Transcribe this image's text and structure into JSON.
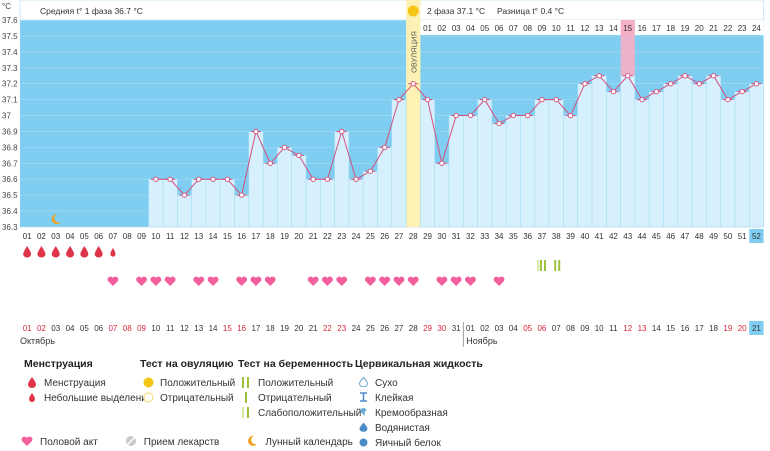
{
  "chart_data": {
    "type": "line",
    "y_unit": "°C",
    "ylim": [
      36.3,
      37.6
    ],
    "y_ticks": [
      "37.6",
      "37.5",
      "37.4",
      "37.3",
      "37.2",
      "37.1",
      "37",
      "36.9",
      "36.8",
      "36.7",
      "36.6",
      "36.5",
      "36.4",
      "36.3"
    ],
    "cycle_days": [
      "01",
      "02",
      "03",
      "04",
      "05",
      "06",
      "07",
      "08",
      "09",
      "10",
      "11",
      "12",
      "13",
      "14",
      "15",
      "16",
      "17",
      "18",
      "19",
      "20",
      "21",
      "22",
      "23",
      "24",
      "25",
      "26",
      "27",
      "28",
      "29",
      "30",
      "31",
      "32",
      "33",
      "34",
      "35",
      "36",
      "37",
      "38",
      "39",
      "40",
      "41",
      "42",
      "43",
      "44",
      "45",
      "46",
      "47",
      "48",
      "49",
      "50",
      "51",
      "52"
    ],
    "temperatures": [
      null,
      null,
      null,
      null,
      null,
      null,
      null,
      null,
      null,
      36.6,
      36.6,
      36.5,
      36.6,
      36.6,
      36.6,
      36.5,
      36.9,
      36.7,
      36.8,
      36.75,
      36.6,
      36.6,
      36.9,
      36.6,
      36.65,
      36.8,
      37.1,
      37.2,
      37.1,
      36.7,
      37.0,
      37.0,
      37.1,
      36.95,
      37.0,
      37.0,
      37.1,
      37.1,
      37.0,
      37.2,
      37.25,
      37.15,
      37.25,
      37.1,
      37.15,
      37.2,
      37.25,
      37.2,
      37.25,
      37.1,
      37.15,
      37.2
    ],
    "ovulation_day": "28",
    "ovulation_label": "ОВУЛЯЦИЯ",
    "phase1_label": "Средняя t° 1 фаза 36.7 °C",
    "phase2_label": "2 фаза 37.1 °C",
    "difference_label": "Разница t° 0.4 °C",
    "post_ovulation_days": [
      "01",
      "02",
      "03",
      "04",
      "05",
      "06",
      "07",
      "08",
      "09",
      "10",
      "11",
      "12",
      "13",
      "14",
      "15",
      "16",
      "17",
      "18",
      "19",
      "20",
      "21",
      "22",
      "23",
      "24"
    ],
    "highlighted_post_day": "15",
    "moon_day": "03",
    "menstruation_days": [
      "01",
      "02",
      "03",
      "04",
      "05",
      "06"
    ],
    "spotting_days": [
      "07"
    ],
    "intercourse_days": [
      "07",
      "09",
      "10",
      "11",
      "13",
      "14",
      "16",
      "17",
      "18",
      "21",
      "22",
      "23",
      "25",
      "26",
      "27",
      "28",
      "30",
      "31",
      "32",
      "34"
    ],
    "ovulation_test_positive_days": [
      "37",
      "38"
    ],
    "ovulation_test_weak_days": [
      "37"
    ],
    "calendar_dates": [
      "01",
      "02",
      "03",
      "04",
      "05",
      "06",
      "07",
      "08",
      "09",
      "10",
      "11",
      "12",
      "13",
      "14",
      "15",
      "16",
      "17",
      "18",
      "19",
      "20",
      "21",
      "22",
      "23",
      "24",
      "25",
      "26",
      "27",
      "28",
      "29",
      "30",
      "31",
      "01",
      "02",
      "03",
      "04",
      "05",
      "06",
      "07",
      "08",
      "09",
      "10",
      "11",
      "12",
      "13",
      "14",
      "15",
      "16",
      "17",
      "18",
      "19",
      "20",
      "21"
    ],
    "red_dates_idx": [
      0,
      1,
      6,
      7,
      8,
      14,
      15,
      21,
      22,
      28,
      29,
      35,
      36,
      42,
      43,
      49,
      50
    ],
    "month1": "Октябрь",
    "month2": "Ноябрь",
    "month2_start_idx": 31,
    "last_day_highlight": "52",
    "last_date_highlight": "21"
  },
  "legend": {
    "menstruation": {
      "title": "Менструация",
      "items": [
        "Менструация",
        "Небольшие выделения"
      ]
    },
    "ovulation_test": {
      "title": "Тест на овуляцию",
      "items": [
        "Положительный",
        "Отрицательный"
      ]
    },
    "pregnancy_test": {
      "title": "Тест на беременность",
      "items": [
        "Положительный",
        "Отрицательный",
        "Слабоположительный"
      ]
    },
    "cervical": {
      "title": "Цервикальная жидкость",
      "items": [
        "Сухо",
        "Клейкая",
        "Кремообразная",
        "Водянистая",
        "Яичный белок"
      ]
    },
    "bottom": [
      "Половой акт",
      "Прием лекарств",
      "Лунный календарь"
    ]
  },
  "colors": {
    "background_blue": "#7fcdf0",
    "bar_fill": "#d7f0fd",
    "line": "#d2507e",
    "ovulation": "#fdf1b4",
    "highlight_pink": "#f6b0c6",
    "red_date": "#d2283c",
    "blood": "#e0344a",
    "heart": "#f25f9c",
    "test_green": "#9bc13c"
  }
}
